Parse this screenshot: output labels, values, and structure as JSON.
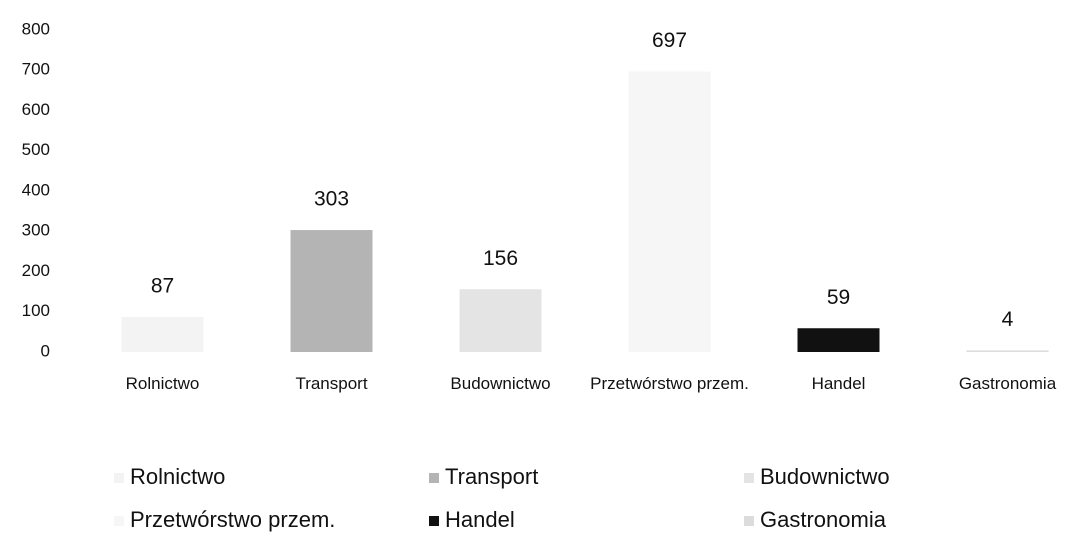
{
  "chart_data": {
    "type": "bar",
    "categories": [
      "Rolnictwo",
      "Transport",
      "Budownictwo",
      "Przetwórstwo przem.",
      "Handel",
      "Gastronomia"
    ],
    "values": [
      87,
      303,
      156,
      697,
      59,
      4
    ],
    "colors": [
      "#f3f3f3",
      "#b4b4b4",
      "#e4e4e4",
      "#f6f6f6",
      "#111111",
      "#dcdcdc"
    ],
    "ylim": [
      0,
      800
    ],
    "yticks": [
      0,
      100,
      200,
      300,
      400,
      500,
      600,
      700,
      800
    ],
    "grid": false,
    "legend": "bottom"
  }
}
